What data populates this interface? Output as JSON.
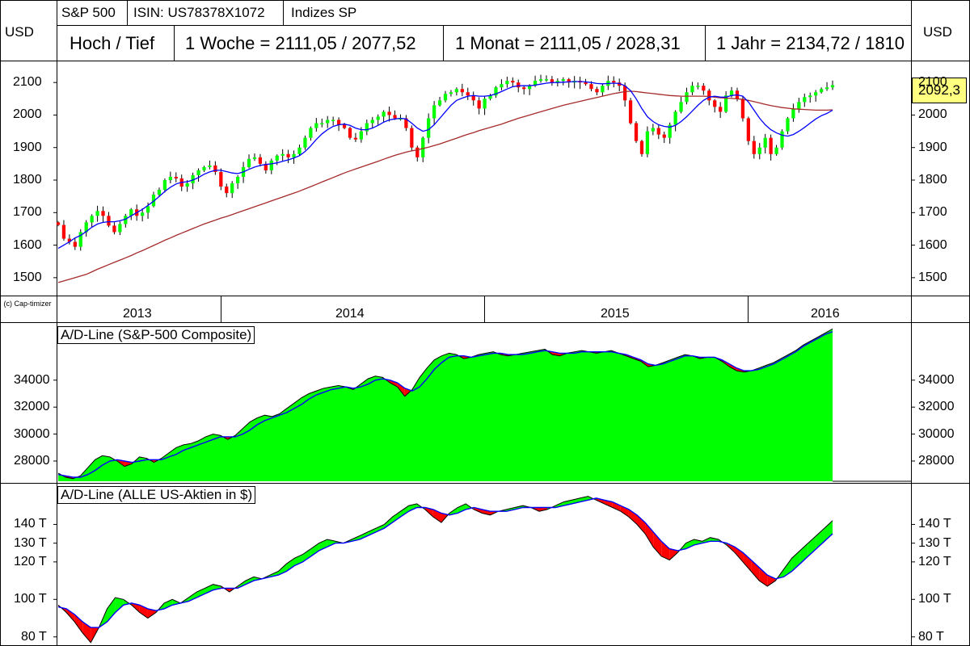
{
  "header": {
    "name": "S&P 500",
    "isin": "ISIN: US78378X1072",
    "exchange": "Indizes SP",
    "currency_left": "USD",
    "currency_right": "USD",
    "hochtief": "Hoch / Tief",
    "week": "1 Woche = 2111,05 / 2077,52",
    "month": "1 Monat = 2111,05 / 2028,31",
    "year": "1 Jahr = 2134,72 / 1810"
  },
  "copyright": "(c) Cap-timizer",
  "last_price": "2092,3",
  "years": [
    "2013",
    "2014",
    "2015",
    "2016"
  ],
  "colors": {
    "up": "#00ff00",
    "down": "#ff0000",
    "ma_short": "#0000ff",
    "ma_long": "#a52a2a",
    "label_bg": "#ffff80"
  },
  "chart_data": [
    {
      "type": "candlestick",
      "title": "S&P 500",
      "ylabel": "USD",
      "ylim": [
        1450,
        2160
      ],
      "y_ticks": [
        1500,
        1600,
        1700,
        1800,
        1900,
        2000,
        2100
      ],
      "x_range": [
        "2012-12",
        "2016-01"
      ],
      "close": [
        1662,
        1620,
        1610,
        1595,
        1640,
        1670,
        1690,
        1705,
        1690,
        1660,
        1640,
        1665,
        1690,
        1710,
        1690,
        1700,
        1720,
        1755,
        1770,
        1800,
        1810,
        1805,
        1780,
        1790,
        1815,
        1830,
        1840,
        1845,
        1825,
        1780,
        1760,
        1790,
        1810,
        1840,
        1865,
        1870,
        1850,
        1830,
        1860,
        1875,
        1880,
        1870,
        1880,
        1900,
        1930,
        1960,
        1975,
        1975,
        1985,
        1985,
        1970,
        1960,
        1930,
        1925,
        1950,
        1975,
        1985,
        1995,
        2010,
        2000,
        1990,
        1990,
        1960,
        1900,
        1870,
        1930,
        1990,
        2030,
        2045,
        2065,
        2070,
        2080,
        2070,
        2060,
        2045,
        2020,
        2050,
        2060,
        2085,
        2095,
        2105,
        2100,
        2085,
        2080,
        2090,
        2105,
        2110,
        2110,
        2100,
        2105,
        2110,
        2100,
        2105,
        2100,
        2095,
        2080,
        2070,
        2090,
        2105,
        2100,
        2090,
        2045,
        1975,
        1920,
        1880,
        1950,
        1960,
        1940,
        1930,
        1970,
        2010,
        2040,
        2070,
        2090,
        2090,
        2075,
        2045,
        2025,
        2010,
        2060,
        2075,
        2050,
        1990,
        1920,
        1880,
        1900,
        1930,
        1880,
        1900,
        1950,
        1990,
        2020,
        2040,
        2055,
        2060,
        2070,
        2080,
        2085,
        2092
      ],
      "ma_short": [
        1590,
        1600,
        1610,
        1622,
        1630,
        1642,
        1655,
        1665,
        1670,
        1672,
        1672,
        1675,
        1680,
        1690,
        1700,
        1710,
        1722,
        1735,
        1750,
        1765,
        1778,
        1788,
        1793,
        1795,
        1800,
        1808,
        1818,
        1825,
        1830,
        1830,
        1826,
        1822,
        1820,
        1825,
        1833,
        1840,
        1845,
        1848,
        1850,
        1853,
        1858,
        1862,
        1868,
        1875,
        1888,
        1905,
        1925,
        1942,
        1955,
        1965,
        1970,
        1972,
        1968,
        1960,
        1955,
        1955,
        1960,
        1968,
        1978,
        1985,
        1988,
        1990,
        1988,
        1975,
        1960,
        1950,
        1955,
        1970,
        1990,
        2010,
        2030,
        2045,
        2052,
        2058,
        2060,
        2058,
        2058,
        2060,
        2065,
        2072,
        2080,
        2087,
        2090,
        2090,
        2090,
        2092,
        2095,
        2098,
        2100,
        2100,
        2101,
        2102,
        2103,
        2103,
        2102,
        2100,
        2097,
        2096,
        2097,
        2098,
        2097,
        2090,
        2075,
        2050,
        2020,
        1995,
        1980,
        1970,
        1965,
        1963,
        1968,
        1980,
        1995,
        2012,
        2030,
        2045,
        2055,
        2058,
        2055,
        2055,
        2060,
        2062,
        2058,
        2040,
        2015,
        1990,
        1970,
        1955,
        1945,
        1938,
        1935,
        1940,
        1950,
        1962,
        1975,
        1988,
        1998,
        2005,
        2015
      ],
      "ma_long": [
        1485,
        1490,
        1495,
        1500,
        1505,
        1510,
        1518,
        1526,
        1533,
        1540,
        1547,
        1554,
        1561,
        1568,
        1576,
        1583,
        1591,
        1599,
        1607,
        1615,
        1622,
        1630,
        1637,
        1644,
        1651,
        1658,
        1665,
        1671,
        1677,
        1683,
        1688,
        1694,
        1700,
        1706,
        1712,
        1718,
        1724,
        1730,
        1736,
        1742,
        1748,
        1754,
        1760,
        1766,
        1773,
        1780,
        1787,
        1794,
        1801,
        1808,
        1815,
        1822,
        1828,
        1834,
        1840,
        1846,
        1852,
        1858,
        1864,
        1870,
        1876,
        1881,
        1886,
        1890,
        1893,
        1897,
        1901,
        1906,
        1911,
        1917,
        1923,
        1929,
        1935,
        1941,
        1946,
        1952,
        1957,
        1962,
        1967,
        1972,
        1978,
        1984,
        1990,
        1995,
        2000,
        2005,
        2010,
        2015,
        2020,
        2025,
        2030,
        2034,
        2038,
        2042,
        2046,
        2050,
        2054,
        2058,
        2062,
        2066,
        2069,
        2072,
        2073,
        2072,
        2070,
        2068,
        2066,
        2064,
        2062,
        2060,
        2059,
        2058,
        2058,
        2058,
        2058,
        2058,
        2057,
        2055,
        2053,
        2052,
        2051,
        2050,
        2048,
        2045,
        2041,
        2037,
        2033,
        2029,
        2026,
        2023,
        2021,
        2019,
        2018,
        2017,
        2016,
        2015,
        2015,
        2015,
        2016
      ]
    },
    {
      "type": "area",
      "title": "A/D-Line (S&P-500 Composite)",
      "ylim": [
        26500,
        38000
      ],
      "y_ticks": [
        28000,
        30000,
        32000,
        34000
      ],
      "x_range": [
        "2012-12",
        "2016-01"
      ],
      "values": [
        27100,
        26800,
        26700,
        26900,
        27500,
        28100,
        28400,
        28300,
        28000,
        27600,
        27800,
        28300,
        28200,
        27900,
        28200,
        28600,
        29000,
        29200,
        29300,
        29500,
        29800,
        30000,
        29900,
        29600,
        29900,
        30400,
        30900,
        31200,
        31400,
        31300,
        31500,
        31900,
        32300,
        32700,
        33000,
        33200,
        33400,
        33500,
        33600,
        33500,
        33300,
        33700,
        34100,
        34300,
        34200,
        33800,
        33500,
        32800,
        33300,
        34200,
        34900,
        35500,
        35800,
        36000,
        35900,
        35600,
        35700,
        35900,
        36000,
        36100,
        35900,
        35800,
        35900,
        36000,
        36100,
        36200,
        36300,
        35900,
        35800,
        36000,
        36100,
        36200,
        36100,
        36000,
        36100,
        36200,
        36000,
        35800,
        35600,
        35400,
        35000,
        35100,
        35300,
        35500,
        35700,
        35900,
        35800,
        35600,
        35700,
        35700,
        35400,
        35000,
        34700,
        34600,
        34700,
        34900,
        35100,
        35300,
        35600,
        35900,
        36200,
        36600,
        36900,
        37200,
        37500,
        37800
      ],
      "ma": [
        27000,
        26900,
        26800,
        26800,
        27000,
        27300,
        27700,
        28000,
        28100,
        28000,
        27900,
        28000,
        28100,
        28100,
        28100,
        28300,
        28500,
        28800,
        29000,
        29200,
        29400,
        29600,
        29800,
        29800,
        29800,
        30000,
        30300,
        30700,
        31000,
        31200,
        31400,
        31600,
        31900,
        32200,
        32600,
        32900,
        33100,
        33300,
        33400,
        33500,
        33400,
        33500,
        33700,
        34000,
        34100,
        34000,
        33800,
        33400,
        33200,
        33500,
        34100,
        34800,
        35300,
        35700,
        35800,
        35800,
        35700,
        35800,
        35900,
        36000,
        36000,
        35900,
        35900,
        35900,
        36000,
        36100,
        36200,
        36100,
        36000,
        36000,
        36000,
        36100,
        36100,
        36100,
        36100,
        36100,
        36000,
        35900,
        35700,
        35500,
        35200,
        35100,
        35200,
        35400,
        35600,
        35800,
        35800,
        35700,
        35700,
        35700,
        35500,
        35200,
        34900,
        34700,
        34700,
        34800,
        35000,
        35200,
        35500,
        35800,
        36100,
        36500,
        36800,
        37100,
        37400,
        37600
      ]
    },
    {
      "type": "area",
      "title": "A/D-Line (ALLE US-Aktien in $)",
      "ylim": [
        76,
        160
      ],
      "y_ticks": [
        80,
        100,
        120,
        130,
        140
      ],
      "y_unit": "T",
      "x_range": [
        "2012-12",
        "2016-01"
      ],
      "values": [
        97,
        93,
        88,
        82,
        77,
        85,
        95,
        101,
        100,
        97,
        93,
        90,
        93,
        98,
        100,
        98,
        101,
        104,
        106,
        108,
        107,
        104,
        107,
        110,
        112,
        111,
        113,
        115,
        119,
        122,
        124,
        127,
        130,
        132,
        131,
        130,
        132,
        134,
        136,
        138,
        140,
        144,
        147,
        150,
        151,
        148,
        144,
        141,
        146,
        149,
        151,
        148,
        146,
        145,
        147,
        148,
        149,
        150,
        149,
        147,
        148,
        150,
        152,
        153,
        154,
        155,
        153,
        151,
        149,
        147,
        144,
        140,
        135,
        128,
        123,
        121,
        125,
        130,
        132,
        131,
        133,
        132,
        129,
        125,
        120,
        115,
        110,
        107,
        110,
        116,
        122,
        126,
        130,
        134,
        138,
        142
      ],
      "ma": [
        96,
        95,
        92,
        88,
        85,
        85,
        88,
        93,
        97,
        98,
        97,
        95,
        94,
        95,
        97,
        98,
        99,
        101,
        103,
        105,
        106,
        106,
        106,
        108,
        110,
        111,
        112,
        113,
        115,
        118,
        120,
        123,
        126,
        128,
        130,
        130,
        131,
        132,
        134,
        136,
        138,
        141,
        144,
        147,
        149,
        149,
        148,
        146,
        145,
        146,
        148,
        149,
        148,
        147,
        147,
        147,
        148,
        149,
        149,
        149,
        149,
        149,
        150,
        151,
        152,
        153,
        154,
        153,
        152,
        150,
        148,
        145,
        141,
        136,
        131,
        127,
        126,
        127,
        129,
        130,
        131,
        131,
        130,
        128,
        125,
        121,
        117,
        113,
        111,
        112,
        115,
        119,
        123,
        127,
        131,
        135
      ]
    }
  ]
}
